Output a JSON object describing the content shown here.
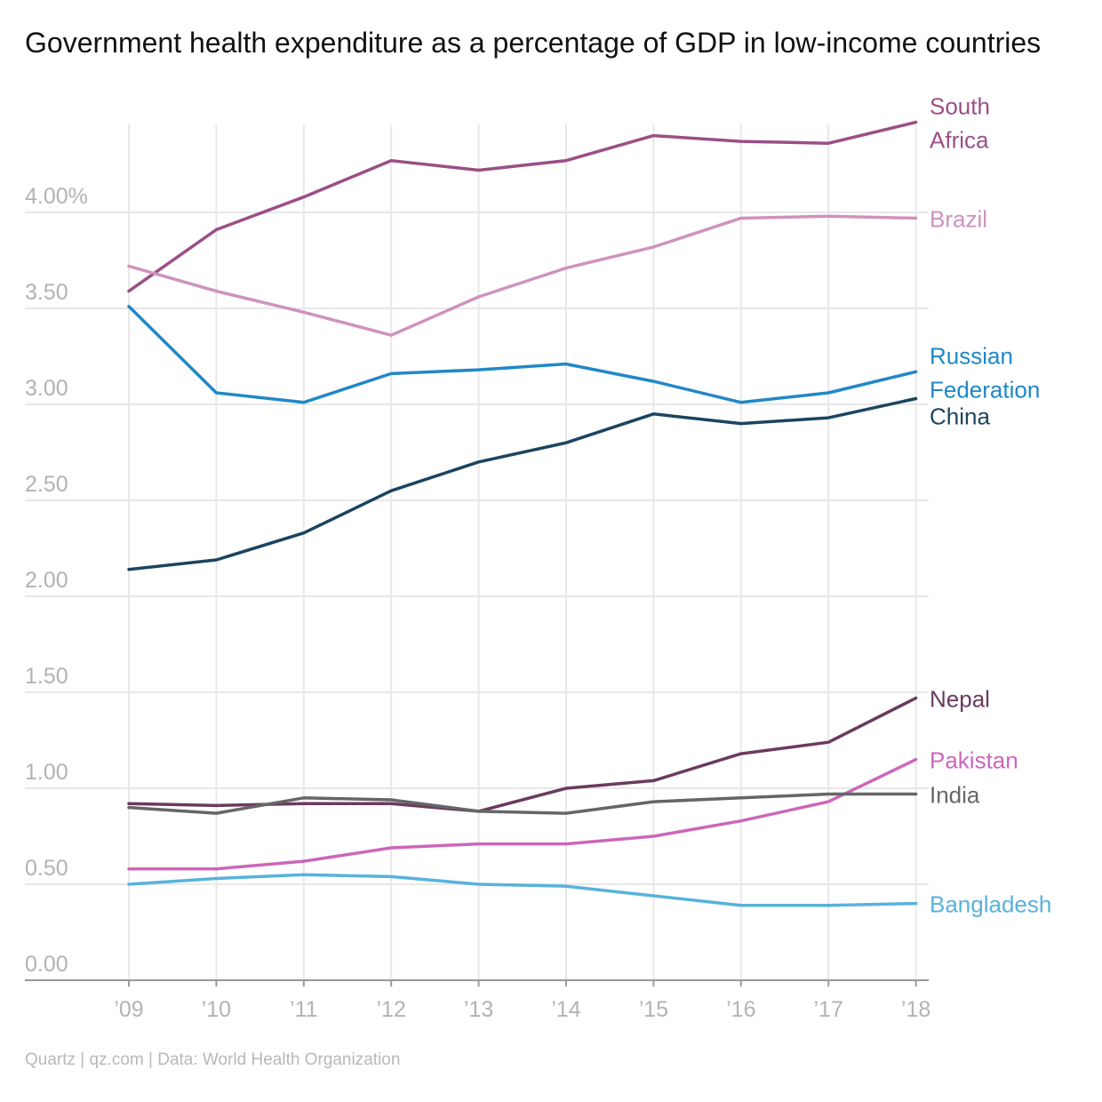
{
  "chart_data": {
    "type": "line",
    "title": "Government health expenditure as a percentage of GDP in low-income countries",
    "source": "Quartz | qz.com | Data: World Health Organization",
    "categories": [
      "’09",
      "’10",
      "’11",
      "’12",
      "’13",
      "’14",
      "’15",
      "’16",
      "’17",
      "’18"
    ],
    "y_ticks": [
      {
        "value": 0,
        "label": "0.00"
      },
      {
        "value": 0.5,
        "label": "0.50"
      },
      {
        "value": 1.0,
        "label": "1.00"
      },
      {
        "value": 1.5,
        "label": "1.50"
      },
      {
        "value": 2.0,
        "label": "2.00"
      },
      {
        "value": 2.5,
        "label": "2.50"
      },
      {
        "value": 3.0,
        "label": "3.00"
      },
      {
        "value": 3.5,
        "label": "3.50"
      },
      {
        "value": 4.0,
        "label": "4.00%"
      }
    ],
    "ylim": [
      0,
      4.46
    ],
    "grid": "vertical and horizontal",
    "legend": "direct labels at line ends",
    "series": [
      {
        "name": "South Africa",
        "label_lines": [
          "South",
          "Africa"
        ],
        "color": "#9b4f86",
        "values": [
          3.59,
          3.91,
          4.08,
          4.27,
          4.22,
          4.27,
          4.4,
          4.37,
          4.36,
          4.47
        ]
      },
      {
        "name": "Brazil",
        "label_lines": [
          "Brazil"
        ],
        "color": "#cf92bd",
        "values": [
          3.72,
          3.59,
          3.48,
          3.36,
          3.56,
          3.71,
          3.82,
          3.97,
          3.98,
          3.97
        ]
      },
      {
        "name": "Russian Federation",
        "label_lines": [
          "Russian",
          "Federation"
        ],
        "color": "#2088c7",
        "values": [
          3.51,
          3.06,
          3.01,
          3.16,
          3.18,
          3.21,
          3.12,
          3.01,
          3.06,
          3.17
        ]
      },
      {
        "name": "China",
        "label_lines": [
          "China"
        ],
        "color": "#1b4460",
        "values": [
          2.14,
          2.19,
          2.33,
          2.55,
          2.7,
          2.8,
          2.95,
          2.9,
          2.93,
          3.03
        ]
      },
      {
        "name": "Nepal",
        "label_lines": [
          "Nepal"
        ],
        "color": "#6b3a5e",
        "values": [
          0.92,
          0.91,
          0.92,
          0.92,
          0.88,
          1.0,
          1.04,
          1.18,
          1.24,
          1.47
        ]
      },
      {
        "name": "Pakistan",
        "label_lines": [
          "Pakistan"
        ],
        "color": "#cc66bb",
        "values": [
          0.58,
          0.58,
          0.62,
          0.69,
          0.71,
          0.71,
          0.75,
          0.83,
          0.93,
          1.15
        ]
      },
      {
        "name": "India",
        "label_lines": [
          "India"
        ],
        "color": "#666666",
        "values": [
          0.9,
          0.87,
          0.95,
          0.94,
          0.88,
          0.87,
          0.93,
          0.95,
          0.97,
          0.97
        ]
      },
      {
        "name": "Bangladesh",
        "label_lines": [
          "Bangladesh"
        ],
        "color": "#58b2dc",
        "values": [
          0.5,
          0.53,
          0.55,
          0.54,
          0.5,
          0.49,
          0.44,
          0.39,
          0.39,
          0.4
        ]
      }
    ]
  }
}
